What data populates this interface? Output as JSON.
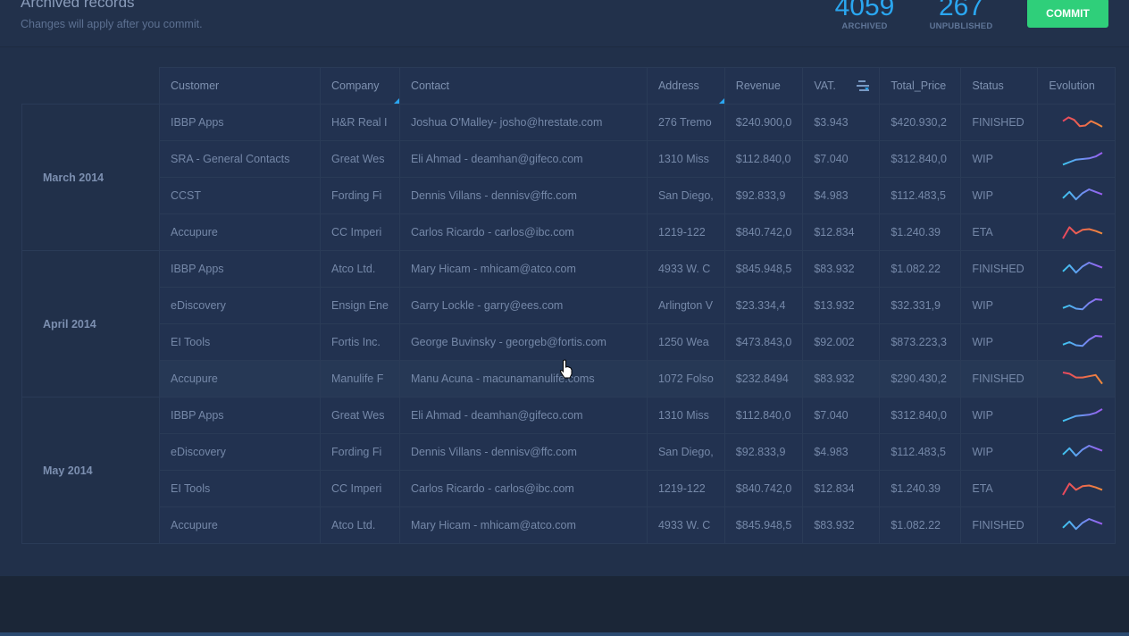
{
  "header": {
    "title": "Archived records",
    "subtitle": "Changes will apply after you commit.",
    "stats": [
      {
        "value": "4059",
        "label": "ARCHIVED"
      },
      {
        "value": "267",
        "label": "UNPUBLISHED"
      }
    ],
    "commit_label": "COMMIT"
  },
  "colors": {
    "accent": "#2aa6f0",
    "commit": "#2fcf7a",
    "warm_start": "#e8475f",
    "warm_end": "#f08a3c",
    "cool_start": "#3ec6f0",
    "cool_end": "#9b5cf0"
  },
  "columns": [
    "Customer",
    "Company",
    "Contact",
    "Address",
    "Revenue",
    "VAT.",
    "Total_Price",
    "Status",
    "Evolution"
  ],
  "groups": [
    {
      "label": "March 2014",
      "rows": [
        {
          "customer": "IBBP Apps",
          "company": "H&R Real I",
          "contact": "Joshua O'Malley- josho@hrestate.com",
          "address": "276 Tremo",
          "revenue": "$240.900,0",
          "vat": "$3.943",
          "total": "$420.930,2",
          "status": "FINISHED",
          "trend": "warm",
          "points": [
            0.4,
            0.1,
            0.3,
            0.8,
            0.75,
            0.4,
            0.6,
            0.85
          ]
        },
        {
          "customer": "SRA - General Contacts",
          "company": "Great Wes",
          "contact": "Eli Ahmad - deamhan@gifeco.com",
          "address": "1310 Miss",
          "revenue": "$112.840,0",
          "vat": "$7.040",
          "total": "$312.840,0",
          "status": "WIP",
          "trend": "cool",
          "points": [
            0.95,
            0.75,
            0.55,
            0.5,
            0.45,
            0.3,
            0
          ]
        },
        {
          "customer": "CCST",
          "company": "Fording Fi",
          "contact": "Dennis Villans - dennisv@ffc.com",
          "address": "San Diego,",
          "revenue": "$92.833,9",
          "vat": "$4.983",
          "total": "$112.483,5",
          "status": "WIP",
          "trend": "cool",
          "points": [
            0.7,
            0.2,
            0.8,
            0.3,
            0,
            0.2,
            0.4
          ]
        },
        {
          "customer": "Accupure",
          "company": "CC Imperi",
          "contact": "Carlos Ricardo - carlos@ibc.com",
          "address": "1219-122",
          "revenue": "$840.742,0",
          "vat": "$12.834",
          "total": "$1.240.39",
          "status": "ETA",
          "trend": "warm",
          "points": [
            1,
            0.1,
            0.6,
            0.3,
            0.25,
            0.4,
            0.6
          ]
        }
      ]
    },
    {
      "label": "April 2014",
      "rows": [
        {
          "customer": "IBBP Apps",
          "company": "Atco Ltd.",
          "contact": "Mary Hicam - mhicam@atco.com",
          "address": "4933 W. C",
          "revenue": "$845.948,5",
          "vat": "$83.932",
          "total": "$1.082.22",
          "status": "FINISHED",
          "trend": "cool",
          "points": [
            0.7,
            0.2,
            0.8,
            0.3,
            0,
            0.2,
            0.4
          ]
        },
        {
          "customer": "eDiscovery",
          "company": "Ensign Ene",
          "contact": "Garry Lockle - garry@ees.com",
          "address": "Arlington V",
          "revenue": "$23.334,4",
          "vat": "$13.932",
          "total": "$32.331,9",
          "status": "WIP",
          "trend": "cool",
          "points": [
            0.7,
            0.5,
            0.75,
            0.8,
            0.3,
            0,
            0.05
          ]
        },
        {
          "customer": "EI Tools",
          "company": "Fortis Inc.",
          "contact": "George Buvinsky - georgeb@fortis.com",
          "address": "1250 Wea",
          "revenue": "$473.843,0",
          "vat": "$92.002",
          "total": "$873.223,3",
          "status": "WIP",
          "trend": "cool",
          "points": [
            0.7,
            0.5,
            0.75,
            0.8,
            0.3,
            0,
            0.05
          ]
        },
        {
          "customer": "Accupure",
          "company": "Manulife F",
          "contact": "Manu Acuna - macunamanulife.coms",
          "address": "1072 Folso",
          "revenue": "$232.8494",
          "vat": "$83.932",
          "total": "$290.430,2",
          "status": "FINISHED",
          "trend": "warm",
          "points": [
            0,
            0.1,
            0.4,
            0.4,
            0.3,
            0.2,
            0.9
          ]
        }
      ]
    },
    {
      "label": "May 2014",
      "rows": [
        {
          "customer": "IBBP Apps",
          "company": "Great Wes",
          "contact": "Eli Ahmad - deamhan@gifeco.com",
          "address": "1310 Miss",
          "revenue": "$112.840,0",
          "vat": "$7.040",
          "total": "$312.840,0",
          "status": "WIP",
          "trend": "cool",
          "points": [
            0.95,
            0.75,
            0.55,
            0.5,
            0.45,
            0.3,
            0
          ]
        },
        {
          "customer": "eDiscovery",
          "company": "Fording Fi",
          "contact": "Dennis Villans - dennisv@ffc.com",
          "address": "San Diego,",
          "revenue": "$92.833,9",
          "vat": "$4.983",
          "total": "$112.483,5",
          "status": "WIP",
          "trend": "cool",
          "points": [
            0.7,
            0.2,
            0.8,
            0.3,
            0,
            0.2,
            0.4
          ]
        },
        {
          "customer": "EI Tools",
          "company": "CC Imperi",
          "contact": "Carlos Ricardo - carlos@ibc.com",
          "address": "1219-122",
          "revenue": "$840.742,0",
          "vat": "$12.834",
          "total": "$1.240.39",
          "status": "ETA",
          "trend": "warm",
          "points": [
            1,
            0.1,
            0.6,
            0.3,
            0.25,
            0.4,
            0.6
          ]
        },
        {
          "customer": "Accupure",
          "company": "Atco Ltd.",
          "contact": "Mary Hicam - mhicam@atco.com",
          "address": "4933 W. C",
          "revenue": "$845.948,5",
          "vat": "$83.932",
          "total": "$1.082.22",
          "status": "FINISHED",
          "trend": "cool",
          "points": [
            0.7,
            0.2,
            0.8,
            0.3,
            0,
            0.2,
            0.4
          ]
        }
      ]
    }
  ]
}
